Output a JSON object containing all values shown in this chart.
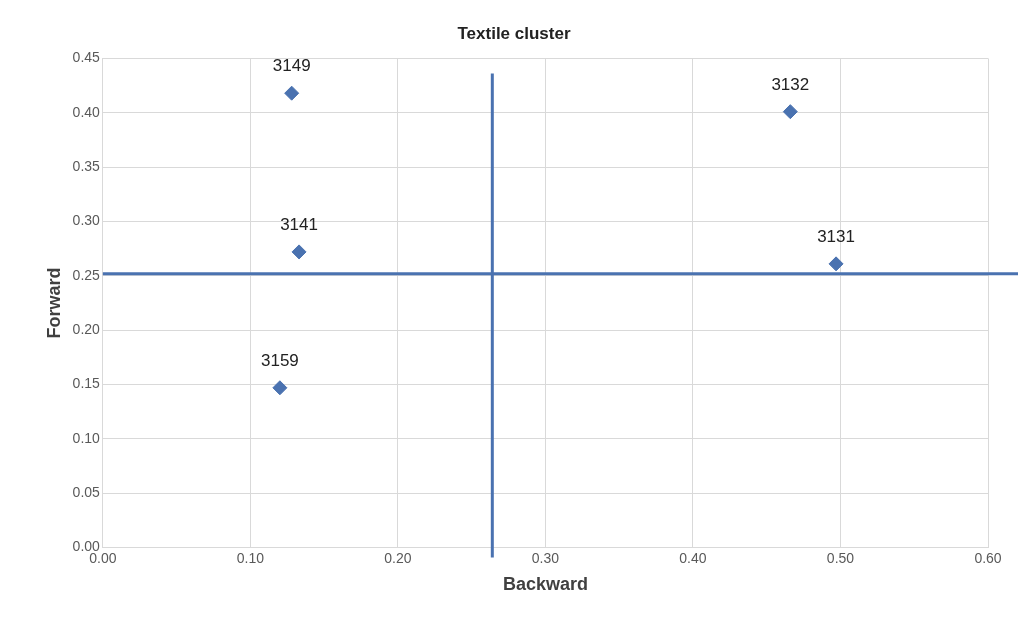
{
  "chart_data": {
    "type": "scatter",
    "title": "Textile cluster",
    "xlabel": "Backward",
    "ylabel": "Forward",
    "x": [
      0.128,
      0.466,
      0.133,
      0.497,
      0.12
    ],
    "series": [
      {
        "color": "#4a72b0",
        "values": [
          0.418,
          0.401,
          0.272,
          0.261,
          0.147
        ]
      }
    ],
    "annotations": [
      {
        "text": "3149",
        "x": 0.128,
        "y": 0.418
      },
      {
        "text": "3132",
        "x": 0.466,
        "y": 0.401
      },
      {
        "text": "3141",
        "x": 0.133,
        "y": 0.272
      },
      {
        "text": "3131",
        "x": 0.497,
        "y": 0.261
      },
      {
        "text": "3159",
        "x": 0.12,
        "y": 0.147
      }
    ],
    "ref_lines": [
      {
        "axis": "x",
        "value": 0.264,
        "color": "#4a72b0"
      },
      {
        "axis": "y",
        "value": 0.252,
        "color": "#4a72b0"
      }
    ],
    "xlim": [
      0,
      0.6
    ],
    "xticks": [
      {
        "value": 0,
        "label": "0.00"
      },
      {
        "value": 0.1,
        "label": "0.10"
      },
      {
        "value": 0.2,
        "label": "0.20"
      },
      {
        "value": 0.3,
        "label": "0.30"
      },
      {
        "value": 0.4,
        "label": "0.40"
      },
      {
        "value": 0.5,
        "label": "0.50"
      },
      {
        "value": 0.6,
        "label": "0.60"
      }
    ],
    "ylim": [
      0,
      0.45
    ],
    "yticks": [
      {
        "value": 0,
        "label": "0.00"
      },
      {
        "value": 0.05,
        "label": "0.05"
      },
      {
        "value": 0.1,
        "label": "0.10"
      },
      {
        "value": 0.15,
        "label": "0.15"
      },
      {
        "value": 0.2,
        "label": "0.20"
      },
      {
        "value": 0.25,
        "label": "0.25"
      },
      {
        "value": 0.3,
        "label": "0.30"
      },
      {
        "value": 0.35,
        "label": "0.35"
      },
      {
        "value": 0.4,
        "label": "0.40"
      },
      {
        "value": 0.45,
        "label": "0.45"
      }
    ],
    "grid": true,
    "marker": "diamond",
    "legend": false
  }
}
